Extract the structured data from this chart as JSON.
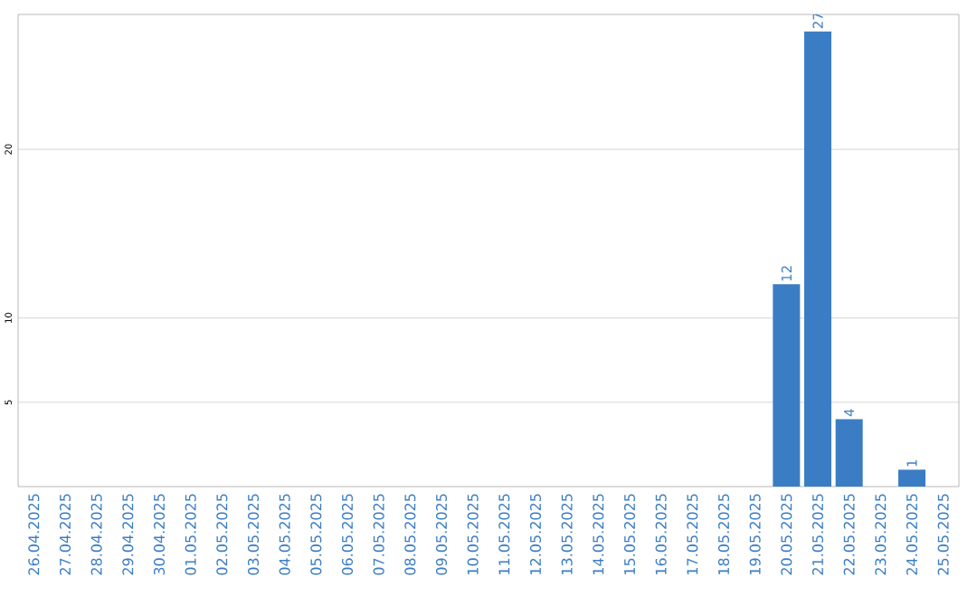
{
  "chart_data": {
    "type": "bar",
    "categories": [
      "26.04.2025",
      "27.04.2025",
      "28.04.2025",
      "29.04.2025",
      "30.04.2025",
      "01.05.2025",
      "02.05.2025",
      "03.05.2025",
      "04.05.2025",
      "05.05.2025",
      "06.05.2025",
      "07.05.2025",
      "08.05.2025",
      "09.05.2025",
      "10.05.2025",
      "11.05.2025",
      "12.05.2025",
      "13.05.2025",
      "14.05.2025",
      "15.05.2025",
      "16.05.2025",
      "17.05.2025",
      "18.05.2025",
      "19.05.2025",
      "20.05.2025",
      "21.05.2025",
      "22.05.2025",
      "23.05.2025",
      "24.05.2025",
      "25.05.2025"
    ],
    "values": [
      0,
      0,
      0,
      0,
      0,
      0,
      0,
      0,
      0,
      0,
      0,
      0,
      0,
      0,
      0,
      0,
      0,
      0,
      0,
      0,
      0,
      0,
      0,
      0,
      12,
      27,
      4,
      0,
      1,
      0
    ],
    "value_labels": [
      null,
      null,
      null,
      null,
      null,
      null,
      null,
      null,
      null,
      null,
      null,
      null,
      null,
      null,
      null,
      null,
      null,
      null,
      null,
      null,
      null,
      null,
      null,
      null,
      "12",
      "27",
      "4",
      null,
      "1",
      null
    ],
    "color": "#3b7dc4",
    "ylim": [
      0,
      28
    ],
    "yticks": [
      5,
      10,
      20
    ],
    "grid": "y"
  }
}
